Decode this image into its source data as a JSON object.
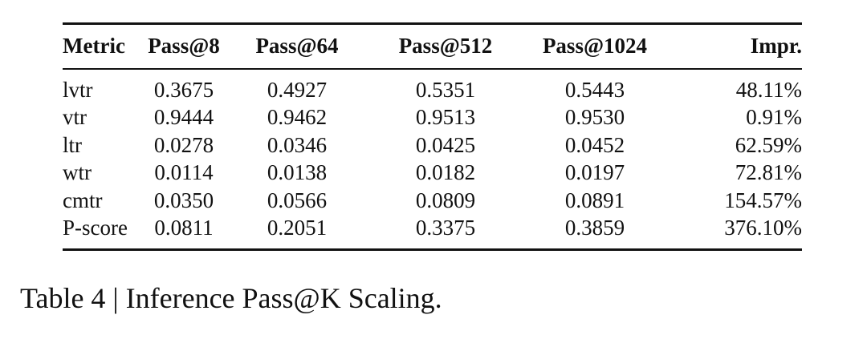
{
  "table": {
    "headers": [
      "Metric",
      "Pass@8",
      "Pass@64",
      "Pass@512",
      "Pass@1024",
      "Impr."
    ],
    "rows": [
      [
        "lvtr",
        "0.3675",
        "0.4927",
        "0.5351",
        "0.5443",
        "48.11%"
      ],
      [
        "vtr",
        "0.9444",
        "0.9462",
        "0.9513",
        "0.9530",
        "0.91%"
      ],
      [
        "ltr",
        "0.0278",
        "0.0346",
        "0.0425",
        "0.0452",
        "62.59%"
      ],
      [
        "wtr",
        "0.0114",
        "0.0138",
        "0.0182",
        "0.0197",
        "72.81%"
      ],
      [
        "cmtr",
        "0.0350",
        "0.0566",
        "0.0809",
        "0.0891",
        "154.57%"
      ],
      [
        "P-score",
        "0.0811",
        "0.2051",
        "0.3375",
        "0.3859",
        "376.10%"
      ]
    ]
  },
  "caption": "Table 4 | Inference Pass@K Scaling."
}
